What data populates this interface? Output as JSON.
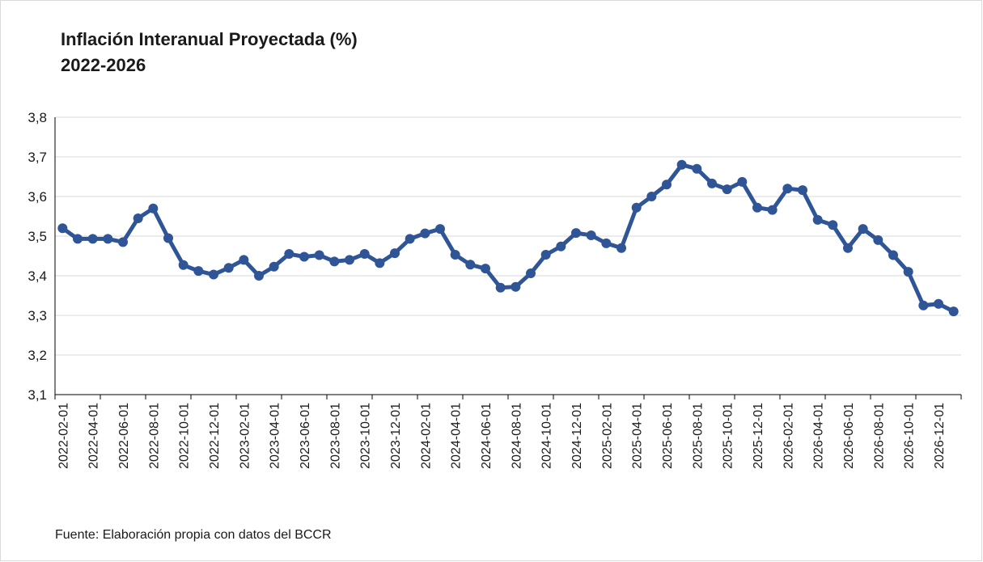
{
  "chart_data": {
    "type": "line",
    "title": "Inflación Interanual Proyectada (%)",
    "subtitle": "2022-2026",
    "footnote": "Fuente: Elaboración propia con datos del BCCR",
    "categories": [
      "2022-02-01",
      null,
      "2022-04-01",
      null,
      "2022-06-01",
      null,
      "2022-08-01",
      null,
      "2022-10-01",
      null,
      "2022-12-01",
      null,
      "2023-02-01",
      null,
      "2023-04-01",
      null,
      "2023-06-01",
      null,
      "2023-08-01",
      null,
      "2023-10-01",
      null,
      "2023-12-01",
      null,
      "2024-02-01",
      null,
      "2024-04-01",
      null,
      "2024-06-01",
      null,
      "2024-08-01",
      null,
      "2024-10-01",
      null,
      "2024-12-01",
      null,
      "2025-02-01",
      null,
      "2025-04-01",
      null,
      "2025-06-01",
      null,
      "2025-08-01",
      null,
      "2025-10-01",
      null,
      "2025-12-01",
      null,
      "2026-02-01",
      null,
      "2026-04-01",
      null,
      "2026-06-01",
      null,
      "2026-08-01",
      null,
      "2026-10-01",
      null,
      "2026-12-01",
      null
    ],
    "series": [
      {
        "name": "Inflación interanual",
        "color": "#2f5597",
        "values": [
          3.52,
          3.493,
          3.493,
          3.493,
          3.485,
          3.545,
          3.57,
          3.495,
          3.427,
          3.412,
          3.403,
          3.42,
          3.44,
          3.4,
          3.423,
          3.455,
          3.448,
          3.452,
          3.436,
          3.44,
          3.455,
          3.432,
          3.457,
          3.493,
          3.507,
          3.518,
          3.453,
          3.428,
          3.418,
          3.37,
          3.372,
          3.406,
          3.453,
          3.474,
          3.508,
          3.502,
          3.482,
          3.47,
          3.572,
          3.6,
          3.63,
          3.68,
          3.67,
          3.633,
          3.618,
          3.637,
          3.572,
          3.566,
          3.62,
          3.616,
          3.541,
          3.528,
          3.47,
          3.518,
          3.49,
          3.452,
          3.41,
          3.325,
          3.329,
          3.31
        ]
      }
    ],
    "ylim": [
      3.1,
      3.8
    ],
    "yticks": [
      {
        "value": 3.1,
        "label": "3,1"
      },
      {
        "value": 3.2,
        "label": "3,2"
      },
      {
        "value": 3.3,
        "label": "3,3"
      },
      {
        "value": 3.4,
        "label": "3,4"
      },
      {
        "value": 3.5,
        "label": "3,5"
      },
      {
        "value": 3.6,
        "label": "3,6"
      },
      {
        "value": 3.7,
        "label": "3,7"
      },
      {
        "value": 3.8,
        "label": "3,8"
      }
    ],
    "grid": true
  }
}
